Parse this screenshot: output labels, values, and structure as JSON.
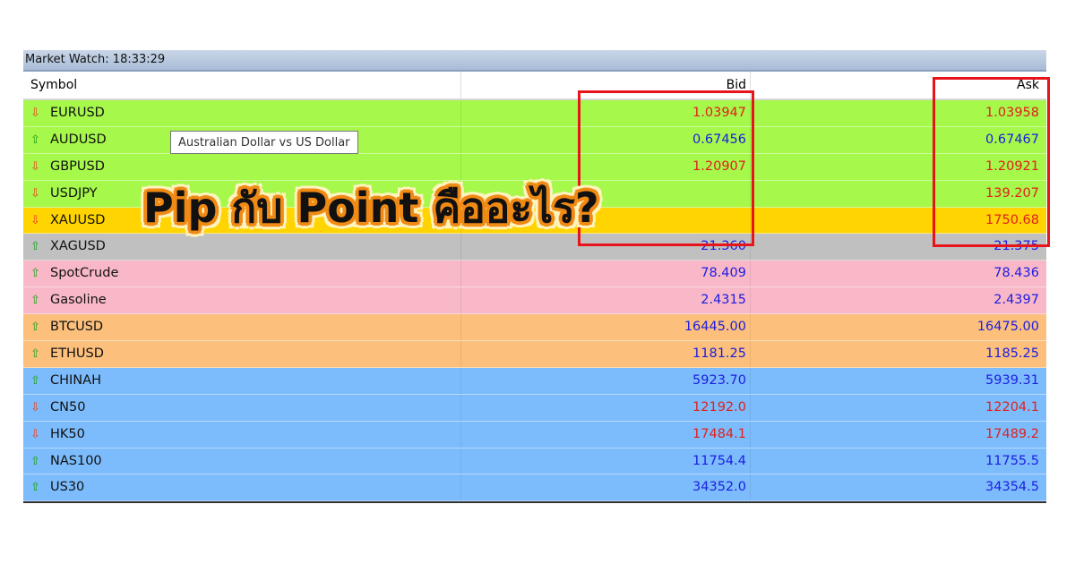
{
  "window": {
    "title": "Market Watch: 18:33:29"
  },
  "columns": {
    "symbol": "Symbol",
    "bid": "Bid",
    "ask": "Ask"
  },
  "colors": {
    "up": "#1aa01a",
    "down": "#e8401c",
    "price_up": "#1c1ce0",
    "price_down": "#e0201c",
    "highlight": "#e8141c"
  },
  "rows": [
    {
      "symbol": "EURUSD",
      "dir": "down",
      "bid": "1.03947",
      "ask": "1.03958",
      "bg": "#a6f84a"
    },
    {
      "symbol": "AUDUSD",
      "dir": "up",
      "bid": "0.67456",
      "ask": "0.67467",
      "bg": "#a6f84a"
    },
    {
      "symbol": "GBPUSD",
      "dir": "down",
      "bid": "1.20907",
      "ask": "1.20921",
      "bg": "#a6f84a"
    },
    {
      "symbol": "USDJPY",
      "dir": "down",
      "bid": "",
      "ask": "139.207",
      "bg": "#a6f84a"
    },
    {
      "symbol": "XAUUSD",
      "dir": "down",
      "bid": "",
      "ask": "1750.68",
      "bg": "#ffd400"
    },
    {
      "symbol": "XAGUSD",
      "dir": "up",
      "bid": "21.360",
      "ask": "21.375",
      "bg": "#c0c0c0"
    },
    {
      "symbol": "SpotCrude",
      "dir": "up",
      "bid": "78.409",
      "ask": "78.436",
      "bg": "#f9b8c8"
    },
    {
      "symbol": "Gasoline",
      "dir": "up",
      "bid": "2.4315",
      "ask": "2.4397",
      "bg": "#f9b8c8"
    },
    {
      "symbol": "BTCUSD",
      "dir": "up",
      "bid": "16445.00",
      "ask": "16475.00",
      "bg": "#fcc07c"
    },
    {
      "symbol": "ETHUSD",
      "dir": "up",
      "bid": "1181.25",
      "ask": "1185.25",
      "bg": "#fcc07c"
    },
    {
      "symbol": "CHINAH",
      "dir": "up",
      "bid": "5923.70",
      "ask": "5939.31",
      "bg": "#7cbcfc"
    },
    {
      "symbol": "CN50",
      "dir": "down",
      "bid": "12192.0",
      "ask": "12204.1",
      "bg": "#7cbcfc"
    },
    {
      "symbol": "HK50",
      "dir": "down",
      "bid": "17484.1",
      "ask": "17489.2",
      "bg": "#7cbcfc"
    },
    {
      "symbol": "NAS100",
      "dir": "up",
      "bid": "11754.4",
      "ask": "11755.5",
      "bg": "#7cbcfc"
    },
    {
      "symbol": "US30",
      "dir": "up",
      "bid": "34352.0",
      "ask": "34354.5",
      "bg": "#7cbcfc"
    }
  ],
  "tooltip": "Australian Dollar vs US Dollar",
  "overlay_title": "Pip กับ Point คืออะไร?"
}
